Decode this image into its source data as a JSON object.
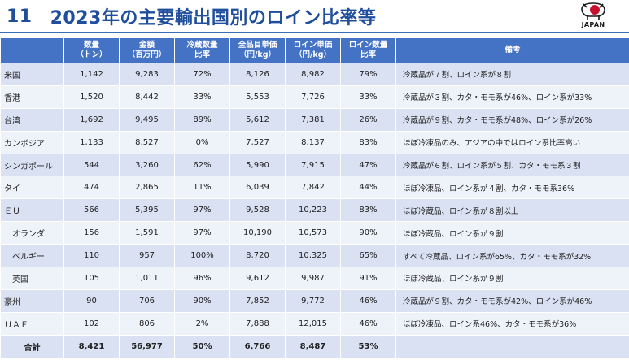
{
  "header": {
    "slide_number": "11",
    "title": "2023年の主要輸出国別のロイン比率等",
    "logo_text": "JAPAN"
  },
  "colors": {
    "title": "#1f4e9c",
    "header_bg": "#4472c4",
    "row_a": "#d9e1f2",
    "row_b": "#eef2f9"
  },
  "table": {
    "columns": [
      "",
      "数量\n（トン）",
      "金額\n（百万円）",
      "冷蔵数量\n比率",
      "全品目単価\n（円/kg）",
      "ロイン単価\n（円/kg）",
      "ロイン数量\n比率",
      "備考"
    ],
    "rows": [
      {
        "name": "米国",
        "sub": false,
        "qty": "1,142",
        "amount": "9,283",
        "chilled": "72%",
        "all_price": "8,126",
        "loin_price": "8,982",
        "loin_ratio": "79%",
        "note": "冷蔵品が７割、ロイン系が８割"
      },
      {
        "name": "香港",
        "sub": false,
        "qty": "1,520",
        "amount": "8,442",
        "chilled": "33%",
        "all_price": "5,553",
        "loin_price": "7,726",
        "loin_ratio": "33%",
        "note": "冷蔵品が３割、カタ・モモ系が46%、ロイン系が33%"
      },
      {
        "name": "台湾",
        "sub": false,
        "qty": "1,692",
        "amount": "9,495",
        "chilled": "89%",
        "all_price": "5,612",
        "loin_price": "7,381",
        "loin_ratio": "26%",
        "note": "冷蔵品が９割、カタ・モモ系が48%、ロイン系が26%"
      },
      {
        "name": "カンボジア",
        "sub": false,
        "qty": "1,133",
        "amount": "8,527",
        "chilled": "0%",
        "all_price": "7,527",
        "loin_price": "8,137",
        "loin_ratio": "83%",
        "note": "ほぼ冷凍品のみ、アジアの中ではロイン系比率高い"
      },
      {
        "name": "シンガポール",
        "sub": false,
        "qty": "544",
        "amount": "3,260",
        "chilled": "62%",
        "all_price": "5,990",
        "loin_price": "7,915",
        "loin_ratio": "47%",
        "note": "冷蔵品が６割、ロイン系が５割、カタ・モモ系３割"
      },
      {
        "name": "タイ",
        "sub": false,
        "qty": "474",
        "amount": "2,865",
        "chilled": "11%",
        "all_price": "6,039",
        "loin_price": "7,842",
        "loin_ratio": "44%",
        "note": "ほぼ冷凍品、ロイン系が４割、カタ・モモ系36%"
      },
      {
        "name": "ＥＵ",
        "sub": false,
        "qty": "566",
        "amount": "5,395",
        "chilled": "97%",
        "all_price": "9,528",
        "loin_price": "10,223",
        "loin_ratio": "83%",
        "note": "ほぼ冷蔵品、ロイン系が８割以上"
      },
      {
        "name": "オランダ",
        "sub": true,
        "qty": "156",
        "amount": "1,591",
        "chilled": "97%",
        "all_price": "10,190",
        "loin_price": "10,573",
        "loin_ratio": "90%",
        "note": "ほぼ冷蔵品、ロイン系が９割"
      },
      {
        "name": "ベルギー",
        "sub": true,
        "qty": "110",
        "amount": "957",
        "chilled": "100%",
        "all_price": "8,720",
        "loin_price": "10,325",
        "loin_ratio": "65%",
        "note": "すべて冷蔵品、ロイン系が65%、カタ・モモ系が32%"
      },
      {
        "name": "英国",
        "sub": true,
        "qty": "105",
        "amount": "1,011",
        "chilled": "96%",
        "all_price": "9,612",
        "loin_price": "9,987",
        "loin_ratio": "91%",
        "note": "ほぼ冷蔵品、ロイン系が９割"
      },
      {
        "name": "豪州",
        "sub": false,
        "qty": "90",
        "amount": "706",
        "chilled": "90%",
        "all_price": "7,852",
        "loin_price": "9,772",
        "loin_ratio": "46%",
        "note": "冷蔵品が９割、カタ・モモ系が42%、ロイン系が46%"
      },
      {
        "name": "ＵＡＥ",
        "sub": false,
        "qty": "102",
        "amount": "806",
        "chilled": "2%",
        "all_price": "7,888",
        "loin_price": "12,015",
        "loin_ratio": "46%",
        "note": "ほぼ冷凍品、ロイン系46%、カタ・モモ系が36%"
      }
    ],
    "total": {
      "name": "合計",
      "qty": "8,421",
      "amount": "56,977",
      "chilled": "50%",
      "all_price": "6,766",
      "loin_price": "8,487",
      "loin_ratio": "53%",
      "note": ""
    }
  }
}
